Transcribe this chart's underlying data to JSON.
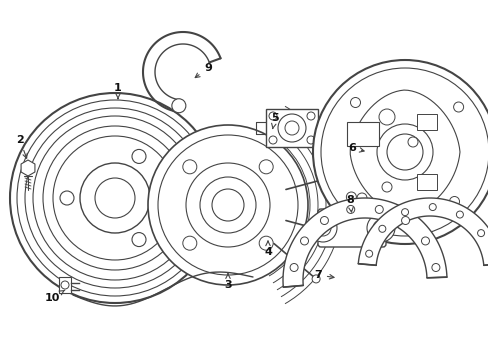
{
  "background_color": "#ffffff",
  "line_color": "#444444",
  "line_width": 1.0,
  "figsize": [
    4.89,
    3.6
  ],
  "dpi": 100,
  "xlim": [
    0,
    489
  ],
  "ylim": [
    0,
    360
  ]
}
